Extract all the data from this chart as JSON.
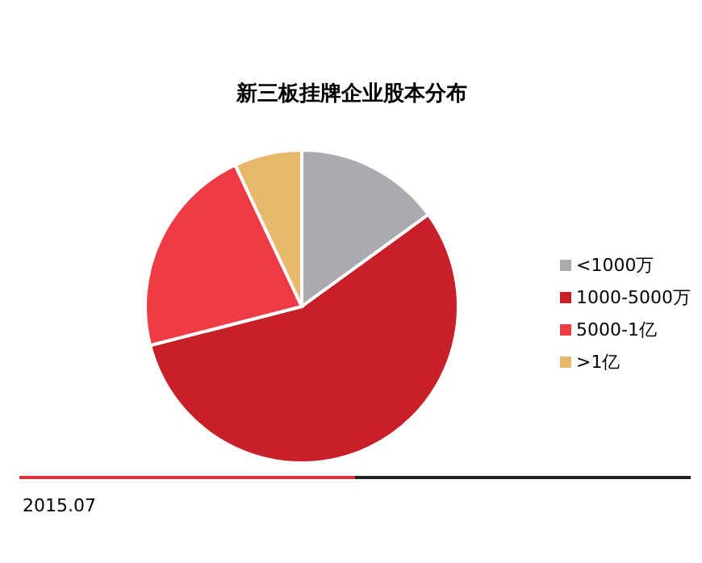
{
  "chart_data": {
    "type": "pie",
    "title": "新三板挂牌企业股本分布",
    "categories": [
      "<1000万",
      "1000-5000万",
      "5000-1亿",
      ">1亿"
    ],
    "values": [
      15,
      56,
      22,
      7
    ],
    "colors": [
      "#a9abae",
      "#c8202a",
      "#ee3b46",
      "#e8b86d"
    ],
    "legend": "right",
    "annotations": [
      "2015.07"
    ]
  }
}
